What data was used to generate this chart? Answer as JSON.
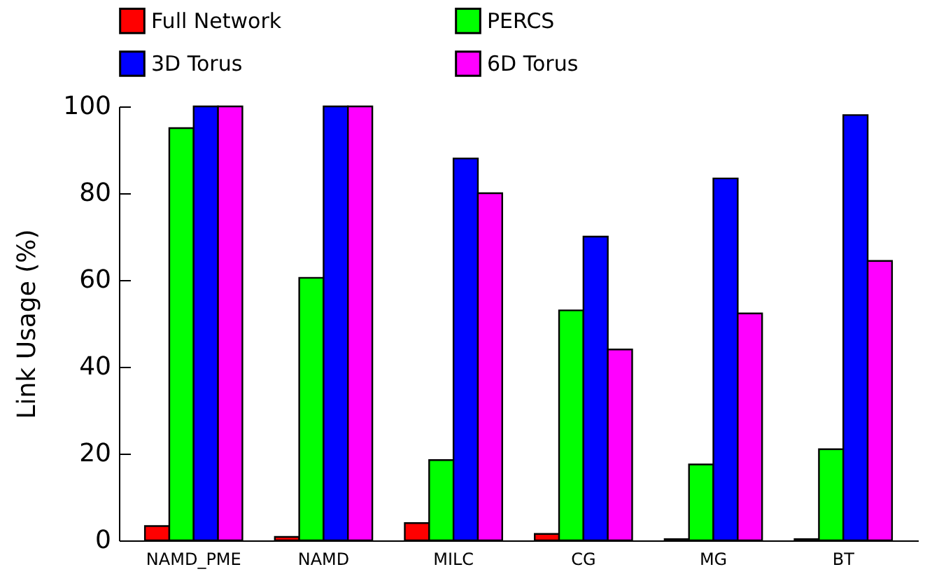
{
  "chart_data": {
    "type": "bar",
    "ylabel": "Link Usage (%)",
    "categories": [
      "NAMD_PME",
      "NAMD",
      "MILC",
      "CG",
      "MG",
      "BT"
    ],
    "series": [
      {
        "name": "Full Network",
        "color": "#ff0000",
        "values": [
          3.3,
          0.8,
          4,
          1.5,
          0.3,
          0.3
        ]
      },
      {
        "name": "PERCS",
        "color": "#00ff00",
        "values": [
          95,
          60.5,
          18.5,
          53,
          17.5,
          21
        ]
      },
      {
        "name": "3D Torus",
        "color": "#0000ff",
        "values": [
          100,
          100,
          88,
          70,
          83.4,
          98
        ]
      },
      {
        "name": "6D Torus",
        "color": "#ff00ff",
        "values": [
          100,
          100,
          80,
          44,
          52.3,
          64.4
        ]
      }
    ],
    "ylim": [
      0,
      100
    ],
    "yticks": [
      0,
      20,
      40,
      60,
      80,
      100
    ],
    "grid": false,
    "legend": "top"
  }
}
